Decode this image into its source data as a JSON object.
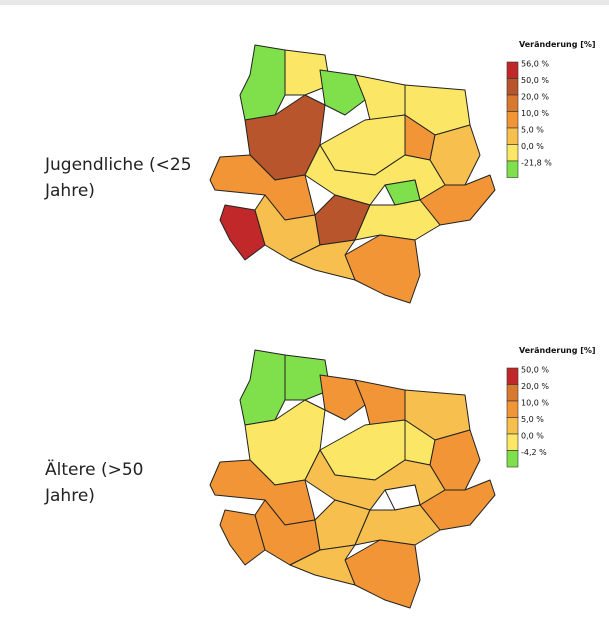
{
  "maps": [
    {
      "label": "Jugendliche (<25 Jahre)",
      "legend": {
        "title": "Veränderung [%]",
        "items": [
          {
            "label": "56,0 %",
            "color": "#c0282a"
          },
          {
            "label": "50,0 %",
            "color": "#b8552c"
          },
          {
            "label": "20,0 %",
            "color": "#d9792f"
          },
          {
            "label": "10,0 %",
            "color": "#f19536"
          },
          {
            "label": "5,0 %",
            "color": "#f7bf4e"
          },
          {
            "label": "0,0 %",
            "color": "#fbe765"
          },
          {
            "label": "-21,8 %",
            "color": "#80e04c"
          }
        ]
      }
    },
    {
      "label": "Ältere (>50 Jahre)",
      "legend": {
        "title": "Veränderung [%]",
        "items": [
          {
            "label": "50,0 %",
            "color": "#c0282a"
          },
          {
            "label": "20,0 %",
            "color": "#d9792f"
          },
          {
            "label": "10,0 %",
            "color": "#f19536"
          },
          {
            "label": "5,0 %",
            "color": "#f7bf4e"
          },
          {
            "label": "0,0 %",
            "color": "#fbe765"
          },
          {
            "label": "-4,2 %",
            "color": "#80e04c"
          }
        ]
      }
    }
  ]
}
